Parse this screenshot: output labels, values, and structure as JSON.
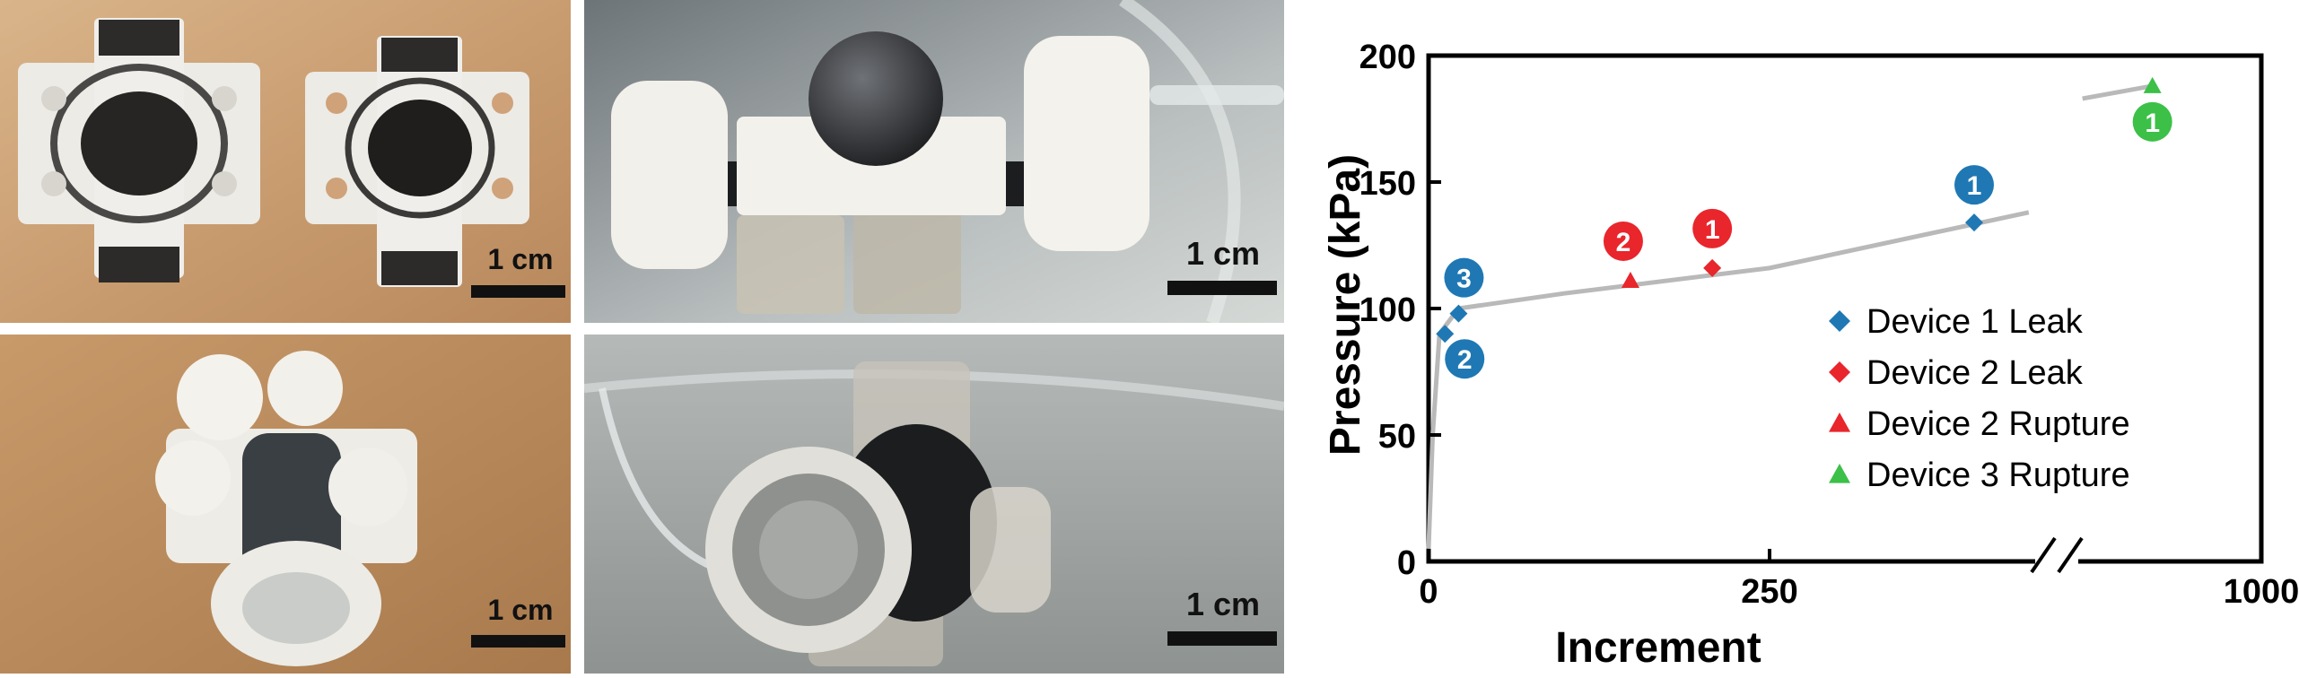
{
  "panels": {
    "photo_a": {
      "scale_label": "1 cm"
    },
    "photo_b": {
      "scale_label": "1 cm"
    },
    "photo_c": {
      "scale_label": "1 cm"
    },
    "photo_d": {
      "scale_label": "1 cm"
    }
  },
  "chart_data": {
    "type": "scatter",
    "title": "",
    "xlabel": "Increment",
    "ylabel": "Pressure (kPa)",
    "ylim": [
      0,
      200
    ],
    "y_ticks": [
      0,
      50,
      100,
      150,
      200
    ],
    "x_ticks": [
      0,
      250,
      1000
    ],
    "x_axis_break": true,
    "grid": false,
    "legend_position": "right",
    "legend": [
      {
        "label": "Device 1 Leak",
        "marker": "diamond",
        "color": "#1f78b4"
      },
      {
        "label": "Device 2 Leak",
        "marker": "diamond",
        "color": "#e8262c"
      },
      {
        "label": "Device 2 Rupture",
        "marker": "triangle",
        "color": "#e8262c"
      },
      {
        "label": "Device 3 Rupture",
        "marker": "triangle",
        "color": "#3cc048"
      }
    ],
    "points": [
      {
        "series": "Device 1 Leak",
        "x": 12,
        "y": 90,
        "label": "2"
      },
      {
        "series": "Device 1 Leak",
        "x": 22,
        "y": 98,
        "label": "3"
      },
      {
        "series": "Device 1 Leak",
        "x": 400,
        "y": 134,
        "label": "1"
      },
      {
        "series": "Device 2 Leak",
        "x": 208,
        "y": 116,
        "label": "1"
      },
      {
        "series": "Device 2 Rupture",
        "x": 148,
        "y": 111,
        "label": "2"
      },
      {
        "series": "Device 3 Rupture",
        "x": 930,
        "y": 188,
        "label": "1"
      }
    ],
    "trend_line": {
      "segment_before_break": [
        [
          0,
          5
        ],
        [
          3,
          50
        ],
        [
          8,
          90
        ],
        [
          22,
          100
        ],
        [
          100,
          106
        ],
        [
          250,
          116
        ],
        [
          440,
          138
        ]
      ],
      "segment_after_break": [
        [
          885,
          183
        ],
        [
          930,
          188
        ]
      ]
    }
  }
}
